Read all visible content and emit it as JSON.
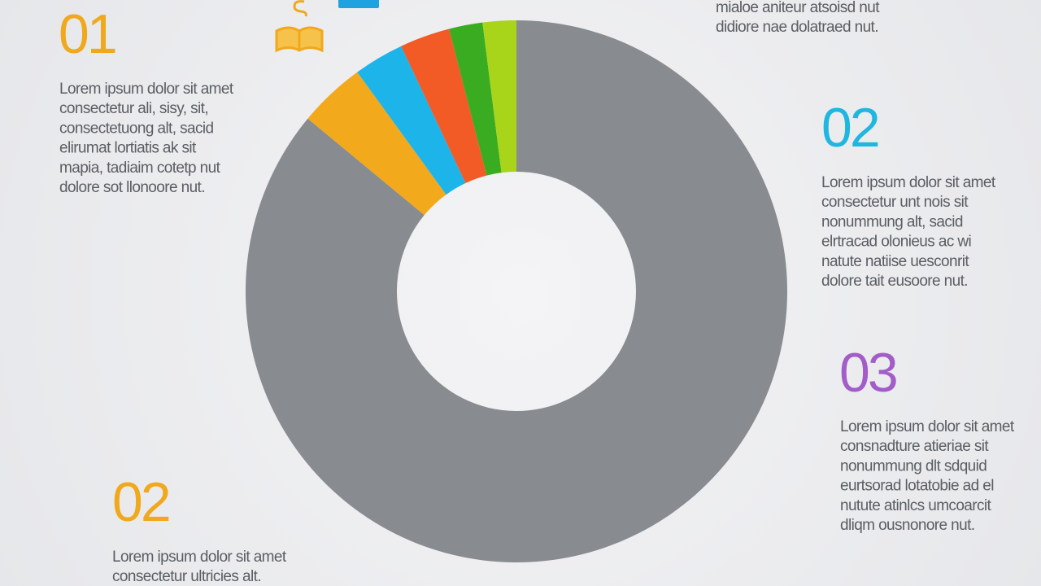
{
  "chart_data": {
    "type": "donut",
    "values": [
      86,
      4,
      3,
      3,
      2,
      2
    ],
    "colors": [
      "#888b90",
      "#f2a91b",
      "#1db4ea",
      "#f25a26",
      "#3aac22",
      "#a8d41a"
    ]
  },
  "blocks": [
    {
      "heading": "01",
      "color": "#f0a81c",
      "lines": [
        "Lorem ipsum dolor sit amet",
        "consectetur ali, sisy, sit,",
        "consectetuong alt, sacid",
        "elirumat lortiatis ak sit",
        "mapia, tadiaim cotetp nut",
        "dolore sot llonoore nut."
      ]
    },
    {
      "heading": "02",
      "color": "#1fb6df",
      "lines": [
        "Lorem ipsum dolor sit amet",
        "consectetur unt nois sit",
        "nonummung alt, sacid",
        "elrtracad olonieus ac wi",
        "natute natiise uesconrit",
        "dolore tait eusoore nut."
      ]
    },
    {
      "heading": "03",
      "color": "#a35dc9",
      "lines": [
        "Lorem ipsum dolor sit amet",
        "consnadture atieriae sit",
        "nonummung dlt sdquid",
        "eurtsorad lotatobie ad el",
        "nutute atinlcs umcoarcit",
        "dliqm ousnonore nut."
      ]
    },
    {
      "heading": "02",
      "color": "#f0a81c",
      "lines": [
        "Lorem ipsum dolor sit amet",
        "consectetur ultricies alt."
      ]
    }
  ],
  "top_note": [
    "mialoe aniteur atsoisd nut",
    "didiore nae dolatraed nut."
  ]
}
